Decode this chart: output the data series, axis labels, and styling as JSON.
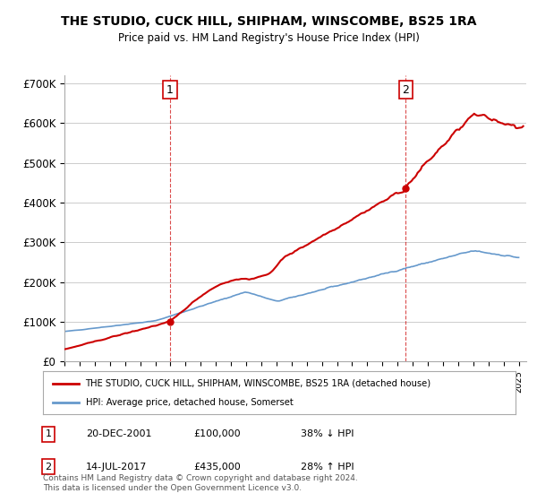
{
  "title": "THE STUDIO, CUCK HILL, SHIPHAM, WINSCOMBE, BS25 1RA",
  "subtitle": "Price paid vs. HM Land Registry's House Price Index (HPI)",
  "ylabel_ticks": [
    "£0",
    "£100K",
    "£200K",
    "£300K",
    "£400K",
    "£500K",
    "£600K",
    "£700K"
  ],
  "ytick_values": [
    0,
    100000,
    200000,
    300000,
    400000,
    500000,
    600000,
    700000
  ],
  "ylim": [
    0,
    720000
  ],
  "xlim_start": 1995.0,
  "xlim_end": 2025.5,
  "sale1_date": 2001.97,
  "sale1_price": 100000,
  "sale1_label": "1",
  "sale2_date": 2017.54,
  "sale2_price": 435000,
  "sale2_label": "2",
  "legend_line1": "THE STUDIO, CUCK HILL, SHIPHAM, WINSCOMBE, BS25 1RA (detached house)",
  "legend_line2": "HPI: Average price, detached house, Somerset",
  "table_row1": [
    "1",
    "20-DEC-2001",
    "£100,000",
    "38% ↓ HPI"
  ],
  "table_row2": [
    "2",
    "14-JUL-2017",
    "£435,000",
    "28% ↑ HPI"
  ],
  "footnote": "Contains HM Land Registry data © Crown copyright and database right 2024.\nThis data is licensed under the Open Government Licence v3.0.",
  "red_color": "#cc0000",
  "blue_color": "#6699cc",
  "dashed_red": "#cc0000",
  "background_color": "#ffffff",
  "grid_color": "#cccccc"
}
